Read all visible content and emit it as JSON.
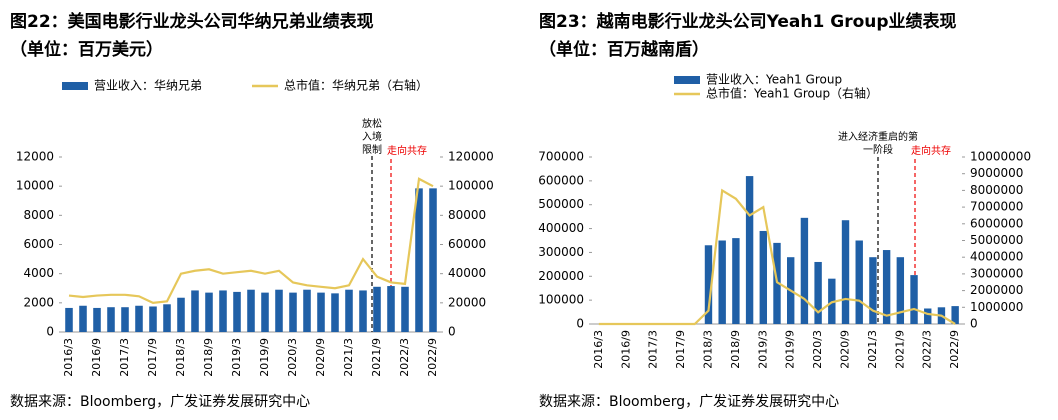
{
  "chart_data": [
    {
      "type": "bar",
      "title": "图22：美国电影行业龙头公司华纳兄弟业绩表现",
      "subtitle": "（单位：百万美元）",
      "categories": [
        "2016/3",
        null,
        "2016/9",
        null,
        "2017/3",
        null,
        "2017/9",
        null,
        "2018/3",
        null,
        "2018/9",
        null,
        "2019/3",
        null,
        "2019/9",
        null,
        "2020/3",
        null,
        "2020/9",
        null,
        "2021/3",
        null,
        "2021/9",
        null,
        "2022/3",
        null,
        "2022/9"
      ],
      "series": [
        {
          "name": "营业收入：华纳兄弟",
          "type": "bar",
          "color": "#1f5fa6",
          "values": [
            1650,
            1800,
            1650,
            1700,
            1700,
            1800,
            1750,
            1900,
            2350,
            2850,
            2700,
            2850,
            2750,
            2900,
            2700,
            2900,
            2700,
            2900,
            2700,
            2650,
            2900,
            2850,
            3100,
            3150,
            3100,
            9850,
            9850
          ]
        },
        {
          "name": "总市值：华纳兄弟（右轴）",
          "type": "line",
          "axis": "y2",
          "color": "#e6c75a",
          "values": [
            25000,
            24000,
            25000,
            25500,
            25500,
            24500,
            20000,
            21000,
            40000,
            42000,
            43000,
            40000,
            41000,
            42000,
            40000,
            42000,
            34000,
            32000,
            31000,
            30000,
            32000,
            50000,
            38000,
            34000,
            33000,
            105000,
            100000
          ]
        }
      ],
      "ylim": [
        0,
        12000
      ],
      "yticks": [
        0,
        2000,
        4000,
        6000,
        8000,
        10000,
        12000
      ],
      "y2lim": [
        0,
        120000
      ],
      "y2ticks": [
        0,
        20000,
        40000,
        60000,
        80000,
        100000,
        120000
      ],
      "annotations": [
        "放松入境限制",
        "走向共存"
      ],
      "source": "数据来源：Bloomberg，广发证券发展研究中心"
    },
    {
      "type": "bar",
      "title": "图23：越南电影行业龙头公司Yeah1 Group业绩表现",
      "subtitle": "（单位：百万越南盾）",
      "categories": [
        "2016/3",
        null,
        "2016/9",
        null,
        "2017/3",
        null,
        "2017/9",
        null,
        "2018/3",
        null,
        "2018/9",
        null,
        "2019/3",
        null,
        "2019/9",
        null,
        "2020/3",
        null,
        "2020/9",
        null,
        "2021/3",
        null,
        "2021/9",
        null,
        "2022/3",
        null,
        "2022/9"
      ],
      "series": [
        {
          "name": "营业收入：Yeah1 Group",
          "type": "bar",
          "color": "#1f5fa6",
          "values": [
            null,
            null,
            null,
            null,
            null,
            null,
            null,
            null,
            330000,
            350000,
            360000,
            620000,
            390000,
            340000,
            280000,
            445000,
            260000,
            190000,
            435000,
            350000,
            280000,
            310000,
            280000,
            205000,
            65000,
            70000,
            75000
          ]
        },
        {
          "name": "总市值：Yeah1 Group（右轴）",
          "type": "line",
          "axis": "y2",
          "color": "#e6c75a",
          "values": [
            0,
            0,
            0,
            0,
            0,
            0,
            0,
            0,
            800000,
            8000000,
            7500000,
            6500000,
            7000000,
            2500000,
            2000000,
            1500000,
            700000,
            1300000,
            1500000,
            1400000,
            800000,
            500000,
            700000,
            900000,
            600000,
            500000,
            0
          ]
        }
      ],
      "ylim": [
        0,
        700000
      ],
      "yticks": [
        0,
        100000,
        200000,
        300000,
        400000,
        500000,
        600000,
        700000
      ],
      "y2lim": [
        0,
        10000000
      ],
      "y2ticks": [
        0,
        1000000,
        2000000,
        3000000,
        4000000,
        5000000,
        6000000,
        7000000,
        8000000,
        9000000,
        10000000
      ],
      "annotations": [
        "进入经济重启的第一阶段",
        "走向共存"
      ],
      "source": "数据来源：Bloomberg，广发证券发展研究中心"
    }
  ]
}
